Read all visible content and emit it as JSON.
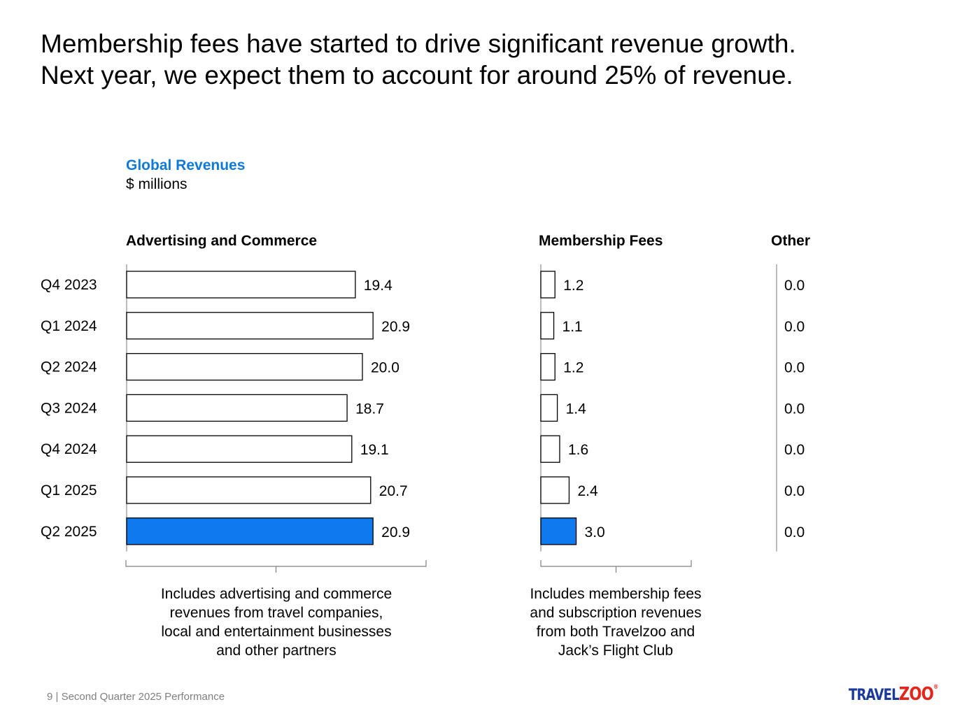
{
  "headline": {
    "line1": "Membership fees have started to drive significant revenue growth.",
    "line2": "Next year, we expect them to account for around 25% of revenue."
  },
  "chart_data": {
    "type": "bar",
    "title": "Global Revenues",
    "units": "$ millions",
    "categories": [
      "Q4 2023",
      "Q1 2024",
      "Q2 2024",
      "Q3 2024",
      "Q4 2024",
      "Q1 2025",
      "Q2 2025"
    ],
    "highlight_category": "Q2 2025",
    "series": [
      {
        "name": "Advertising and Commerce",
        "values": [
          19.4,
          20.9,
          20.0,
          18.7,
          19.1,
          20.7,
          20.9
        ]
      },
      {
        "name": "Membership Fees",
        "values": [
          1.2,
          1.1,
          1.2,
          1.4,
          1.6,
          2.4,
          3.0
        ]
      },
      {
        "name": "Other",
        "values": [
          0.0,
          0.0,
          0.0,
          0.0,
          0.0,
          0.0,
          0.0
        ]
      }
    ],
    "value_labels": [
      [
        "19.4",
        "20.9",
        "20.0",
        "18.7",
        "19.1",
        "20.7",
        "20.9"
      ],
      [
        "1.2",
        "1.1",
        "1.2",
        "1.4",
        "1.6",
        "2.4",
        "3.0"
      ],
      [
        "0.0",
        "0.0",
        "0.0",
        "0.0",
        "0.0",
        "0.0",
        "0.0"
      ]
    ],
    "orientation": "horizontal",
    "colors": {
      "highlight": "#0f7aee",
      "default_fill": "#ffffff",
      "outline": "#000000"
    }
  },
  "notes": {
    "advertising_line1": "Includes advertising and commerce",
    "advertising_line2": "revenues from travel companies,",
    "advertising_line3": "local and entertainment businesses",
    "advertising_line4": "and other partners",
    "membership_line1": "Includes membership fees",
    "membership_line2": "and subscription revenues",
    "membership_line3": "from both Travelzoo and",
    "membership_line4": "Jack’s Flight Club"
  },
  "footer": {
    "text": "9 | Second Quarter 2025 Performance"
  },
  "logo": {
    "part1": "TRAVEL",
    "part2": "ZOO",
    "mark": "®"
  }
}
